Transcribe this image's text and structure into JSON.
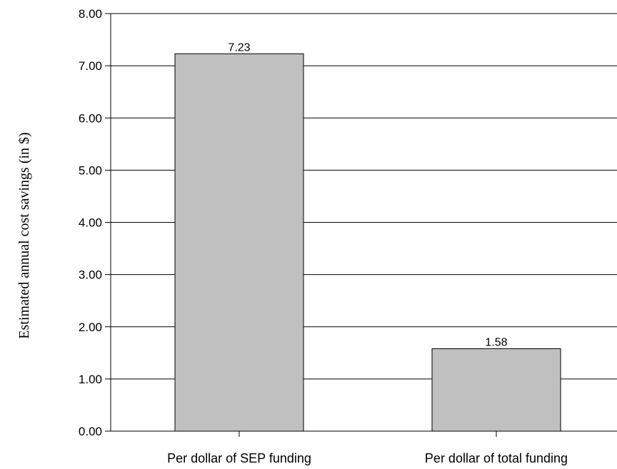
{
  "chart_data": {
    "type": "bar",
    "categories": [
      "Per dollar of SEP funding",
      "Per dollar of total funding"
    ],
    "values": [
      7.23,
      1.58
    ],
    "data_labels": [
      "7.23",
      "1.58"
    ],
    "title": "",
    "xlabel": "",
    "ylabel": "Estimated annual cost savings (in $)",
    "ylim": [
      0,
      8
    ],
    "yticks": [
      0,
      1,
      2,
      3,
      4,
      5,
      6,
      7,
      8
    ],
    "ytick_labels": [
      "0.00",
      "1.00",
      "2.00",
      "3.00",
      "4.00",
      "5.00",
      "6.00",
      "7.00",
      "8.00"
    ],
    "grid": "horizontal",
    "legend": "none",
    "colors": {
      "bar": "#c0c0c0",
      "bar_edge": "#000000",
      "grid": "#000000"
    }
  }
}
